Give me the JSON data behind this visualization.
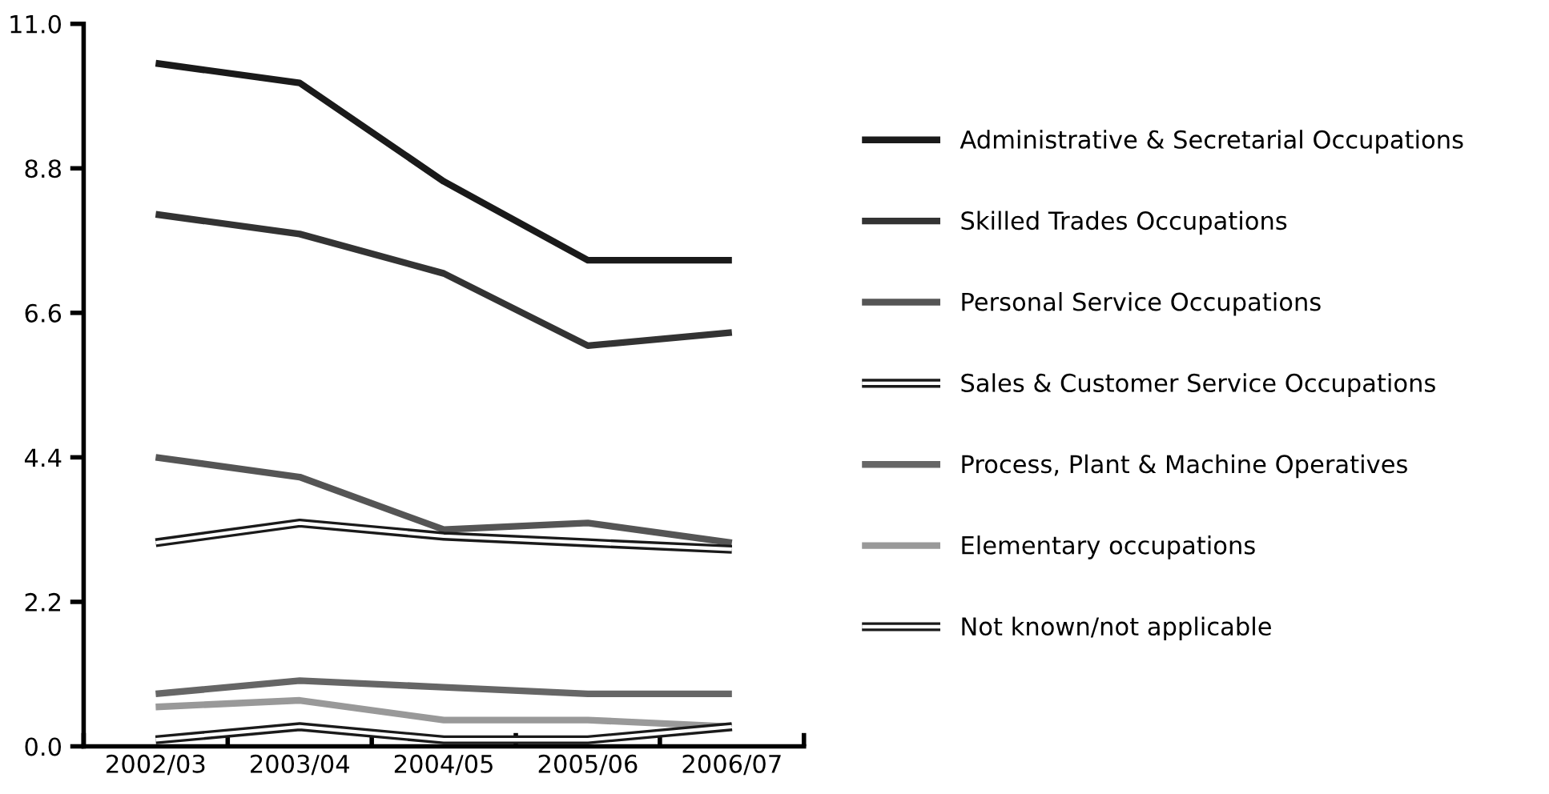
{
  "chart_data": {
    "type": "line",
    "categories": [
      "2002/03",
      "2003/04",
      "2004/05",
      "2005/06",
      "2006/07"
    ],
    "ylim": [
      0,
      11
    ],
    "yticks": [
      {
        "value": 0,
        "label": "0.0"
      },
      2.2,
      4.4,
      6.6,
      8.8,
      {
        "value": 11,
        "label": "11.0"
      }
    ],
    "legend": "right",
    "grid": false,
    "series": [
      {
        "name": "Administrative & Secretarial Occupations",
        "color": "#1a1a1a",
        "values": [
          10.4,
          10.1,
          8.6,
          7.4,
          7.4
        ]
      },
      {
        "name": "Skilled Trades Occupations",
        "color": "#333333",
        "values": [
          8.1,
          7.8,
          7.2,
          6.1,
          6.3
        ]
      },
      {
        "name": "Personal Service Occupations",
        "color": "#555555",
        "values": [
          4.4,
          4.1,
          3.3,
          3.4,
          3.1
        ]
      },
      {
        "name": "Sales & Customer Service Occupations",
        "color": "#1a1a1a",
        "values": [
          3.1,
          3.4,
          3.2,
          3.1,
          3.0
        ]
      },
      {
        "name": "Process, Plant & Machine Operatives",
        "color": "#666666",
        "values": [
          0.8,
          1.0,
          0.9,
          0.8,
          0.8
        ]
      },
      {
        "name": "Elementary occupations",
        "color": "#999999",
        "values": [
          0.6,
          0.7,
          0.4,
          0.4,
          0.3
        ]
      },
      {
        "name": "Not known/not applicable",
        "color": "#1a1a1a",
        "values": [
          0.1,
          0.3,
          0.1,
          0.1,
          0.3
        ]
      }
    ]
  }
}
